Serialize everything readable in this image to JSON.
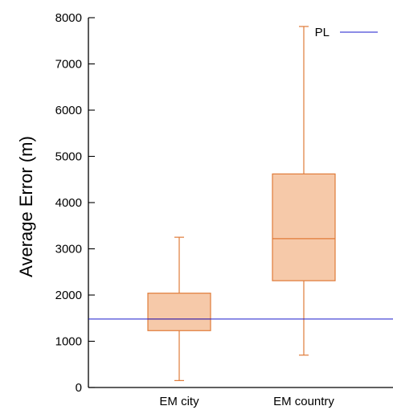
{
  "chart_data": {
    "type": "box",
    "ylabel": "Average Error (m)",
    "xlabel": "",
    "ylim": [
      0,
      8000
    ],
    "yticks": [
      0,
      1000,
      2000,
      3000,
      4000,
      5000,
      6000,
      7000,
      8000
    ],
    "categories": [
      "EM city",
      "EM country"
    ],
    "boxes": [
      {
        "category": "EM city",
        "min": 150,
        "q1": 1230,
        "median": 1480,
        "q3": 2040,
        "max": 3250
      },
      {
        "category": "EM country",
        "min": 700,
        "q1": 2310,
        "median": 3220,
        "q3": 4620,
        "max": 7810
      }
    ],
    "reference_lines": [
      {
        "name": "PL",
        "value": 1480,
        "color": "#1a1acc"
      }
    ],
    "legend": {
      "position": "top-right",
      "entries": [
        "PL"
      ]
    },
    "grid": false,
    "colors": {
      "box_fill": "#f6c9a9",
      "box_stroke": "#e07b39",
      "axis": "#000000",
      "reference": "#1a1acc"
    }
  }
}
